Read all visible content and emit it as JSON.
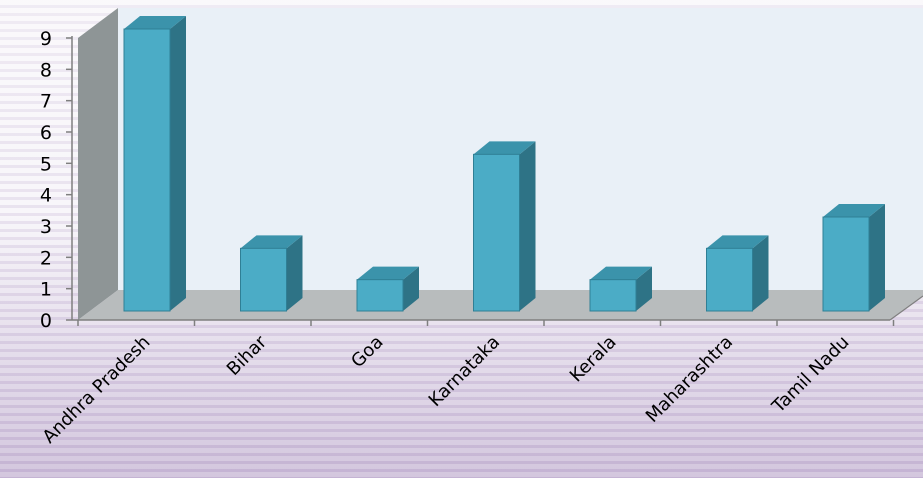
{
  "chart_data": {
    "type": "bar",
    "categories": [
      "Andhra Pradesh",
      "Bihar",
      "Goa",
      "Karnataka",
      "Kerala",
      "Maharashtra",
      "Tamil Nadu"
    ],
    "values": [
      9,
      2,
      1,
      5,
      1,
      2,
      3
    ],
    "ylim": [
      0,
      9
    ],
    "yticks": [
      "0",
      "1",
      "2",
      "3",
      "4",
      "5",
      "6",
      "7",
      "8",
      "9"
    ],
    "grid": false,
    "legend": "none",
    "colors": {
      "bar_front": "#4bacc6",
      "bar_side": "#2e7386",
      "bar_top": "#3b93ab",
      "bar_edge": "#2f7f95",
      "back_wall": "#e9f0f7",
      "side_wall": "#8e9596",
      "floor": "#b8bcbd"
    }
  }
}
